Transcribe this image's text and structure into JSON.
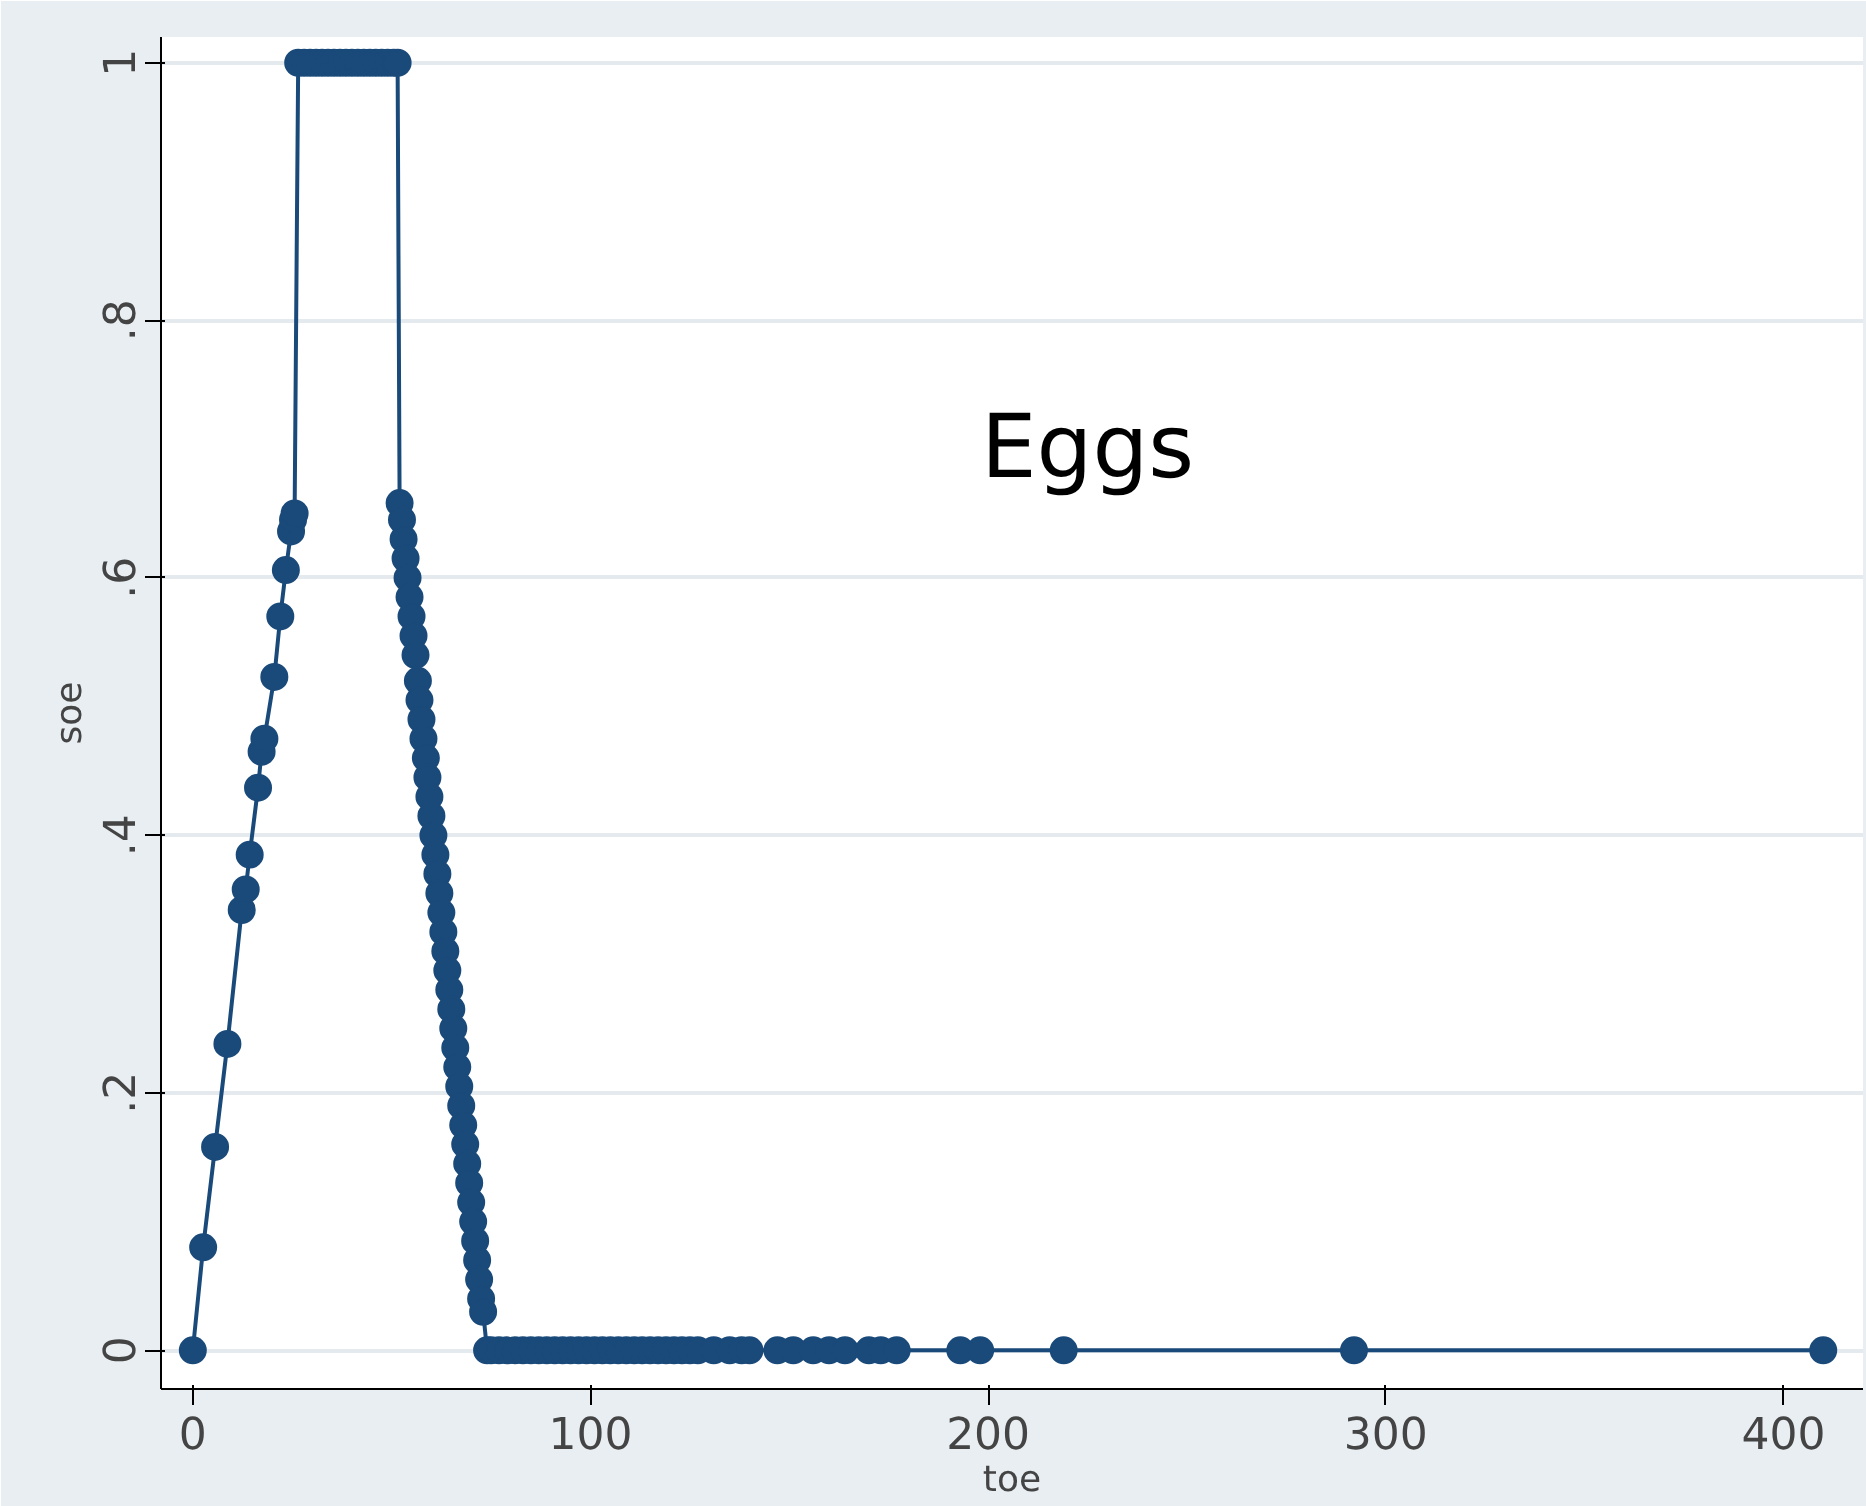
{
  "chart_data": {
    "type": "line",
    "xlabel": "toe",
    "ylabel": "soe",
    "annotations": [
      "Eggs"
    ],
    "x": [
      0,
      2.6,
      5.6,
      8.7,
      12.3,
      13.3,
      14.3,
      16.4,
      17.3,
      18,
      20.5,
      22,
      23.4,
      24.7,
      25.2,
      25.6,
      26.5,
      28,
      29.5,
      31,
      32.5,
      34,
      35.5,
      37,
      38.5,
      40,
      41.5,
      43,
      44.5,
      46,
      47.5,
      49,
      50.5,
      51.5,
      52,
      52.6,
      53,
      53.5,
      54,
      54.5,
      55,
      55.5,
      56,
      56.6,
      57,
      57.5,
      58,
      58.6,
      59,
      59.5,
      60,
      60.5,
      61,
      61.5,
      62,
      62.5,
      63,
      63.5,
      64,
      64.5,
      65,
      65.5,
      66,
      66.5,
      67,
      67.5,
      68,
      68.5,
      69,
      69.5,
      70,
      70.5,
      71,
      71.5,
      72,
      72.5,
      73,
      74,
      75,
      77,
      79,
      81,
      83,
      85,
      87,
      89,
      91,
      93,
      95,
      97,
      99,
      101,
      103,
      105,
      107,
      109,
      111,
      113,
      115,
      117,
      119,
      121,
      123,
      125,
      127,
      131,
      135,
      138,
      140,
      147,
      151,
      156,
      160,
      164,
      170,
      173,
      177,
      193,
      198,
      219,
      292,
      410
    ],
    "series": [
      {
        "color": "#1a4a7a",
        "values": [
          0,
          0.08,
          0.158,
          0.238,
          0.342,
          0.358,
          0.385,
          0.437,
          0.465,
          0.475,
          0.523,
          0.57,
          0.606,
          0.636,
          0.645,
          0.65,
          1,
          1,
          1,
          1,
          1,
          1,
          1,
          1,
          1,
          1,
          1,
          1,
          1,
          1,
          1,
          1,
          1,
          1,
          0.658,
          0.645,
          0.63,
          0.615,
          0.6,
          0.585,
          0.57,
          0.555,
          0.54,
          0.52,
          0.505,
          0.49,
          0.475,
          0.46,
          0.445,
          0.43,
          0.415,
          0.4,
          0.385,
          0.37,
          0.355,
          0.34,
          0.325,
          0.31,
          0.295,
          0.28,
          0.265,
          0.25,
          0.235,
          0.22,
          0.205,
          0.19,
          0.175,
          0.16,
          0.145,
          0.13,
          0.115,
          0.1,
          0.085,
          0.07,
          0.055,
          0.04,
          0.03,
          0,
          0,
          0,
          0,
          0,
          0,
          0,
          0,
          0,
          0,
          0,
          0,
          0,
          0,
          0,
          0,
          0,
          0,
          0,
          0,
          0,
          0,
          0,
          0,
          0,
          0,
          0,
          0,
          0,
          0,
          0,
          0,
          0,
          0,
          0,
          0,
          0,
          0,
          0,
          0,
          0,
          0,
          0,
          0,
          0
        ]
      }
    ],
    "xlim": [
      -8,
      420
    ],
    "ylim": [
      -0.03,
      1.02
    ],
    "xticks": [
      0,
      100,
      200,
      300,
      400
    ],
    "yticks": [
      0,
      {
        "value": 0.2,
        "label": ".2"
      },
      {
        "value": 0.4,
        "label": ".4"
      },
      {
        "value": 0.6,
        "label": ".6"
      },
      {
        "value": 0.8,
        "label": ".8"
      },
      1
    ],
    "grid": "y",
    "marker": "circle",
    "line_style": "solid"
  }
}
